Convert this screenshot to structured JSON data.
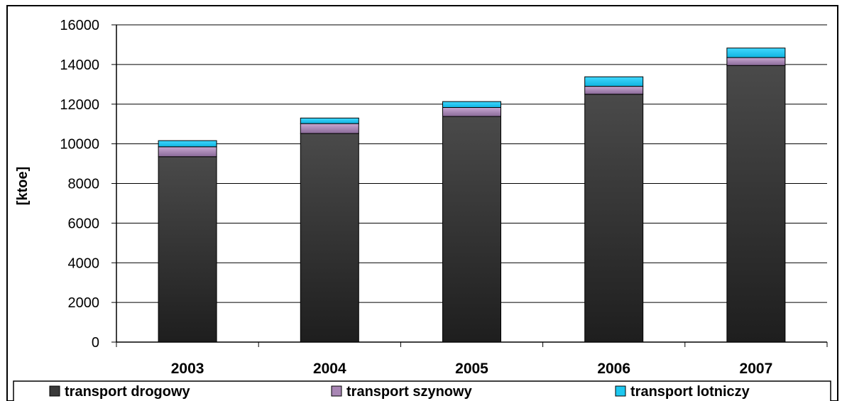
{
  "chart_data": {
    "type": "bar",
    "stacked": true,
    "title": "",
    "xlabel": "",
    "ylabel": "[ktoe]",
    "ylim": [
      0,
      16000
    ],
    "yticks": [
      0,
      2000,
      4000,
      6000,
      8000,
      10000,
      12000,
      14000,
      16000
    ],
    "grid": true,
    "legend_position": "bottom",
    "categories": [
      "2003",
      "2004",
      "2005",
      "2006",
      "2007"
    ],
    "series": [
      {
        "name": "transport drogowy",
        "color": "#3a3a3a",
        "values": [
          9350,
          10520,
          11380,
          12500,
          13950
        ]
      },
      {
        "name": "transport szynowy",
        "color": "#a886b4",
        "values": [
          500,
          500,
          450,
          400,
          400
        ]
      },
      {
        "name": "transport lotniczy",
        "color": "#1ec8f0",
        "values": [
          310,
          280,
          300,
          480,
          480
        ]
      }
    ]
  }
}
